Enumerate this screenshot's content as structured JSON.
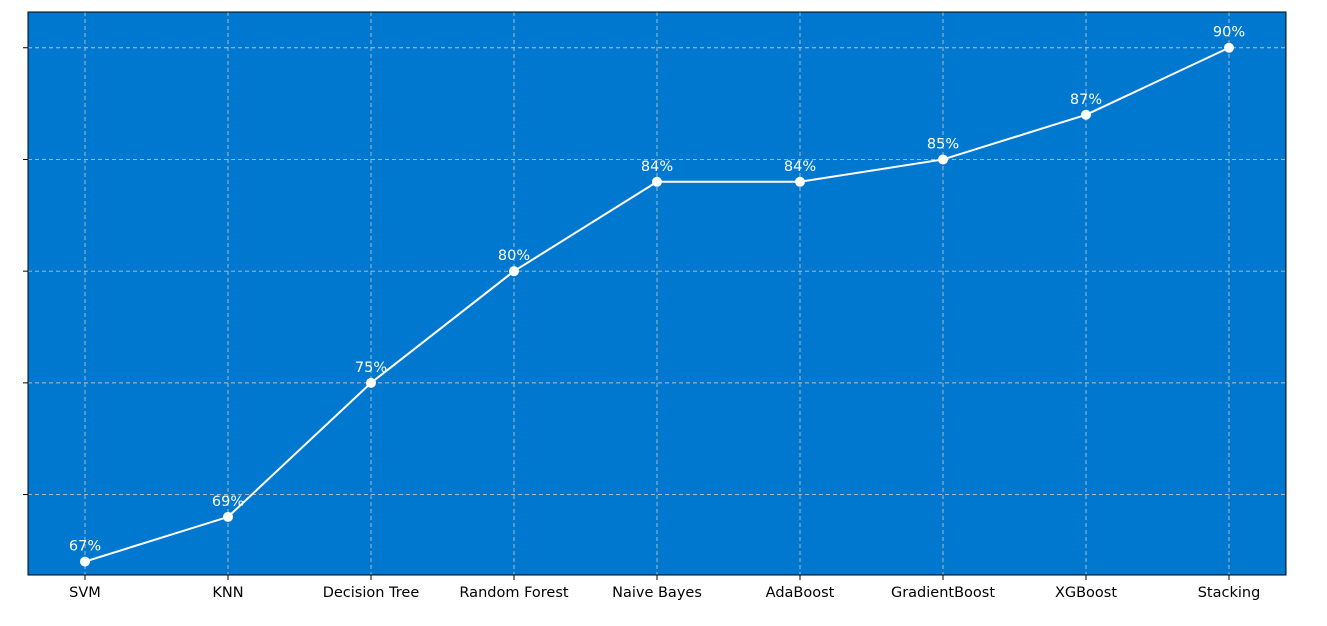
{
  "chart_data": {
    "type": "line",
    "categories": [
      "SVM",
      "KNN",
      "Decision Tree",
      "Random Forest",
      "Naive Bayes",
      "AdaBoost",
      "GradientBoost",
      "XGBoost",
      "Stacking"
    ],
    "series": [
      {
        "values": [
          67,
          69,
          75,
          80,
          84,
          84,
          85,
          87,
          90
        ]
      }
    ],
    "data_labels": [
      "67%",
      "69%",
      "75%",
      "80%",
      "84%",
      "84%",
      "85%",
      "87%",
      "90%"
    ],
    "y_ticks": [
      70,
      75,
      80,
      85,
      90
    ],
    "y_tick_labels_visible": false,
    "ylim": [
      66.4,
      91.6
    ],
    "title": "",
    "xlabel": "",
    "ylabel": "",
    "grid": true,
    "colors": {
      "plot_background": "#0078d0",
      "line": "#ffffff",
      "marker": "#ffffff",
      "grid": "#bfbfbf",
      "data_label": "#ffffff",
      "axis": "#000000"
    }
  }
}
